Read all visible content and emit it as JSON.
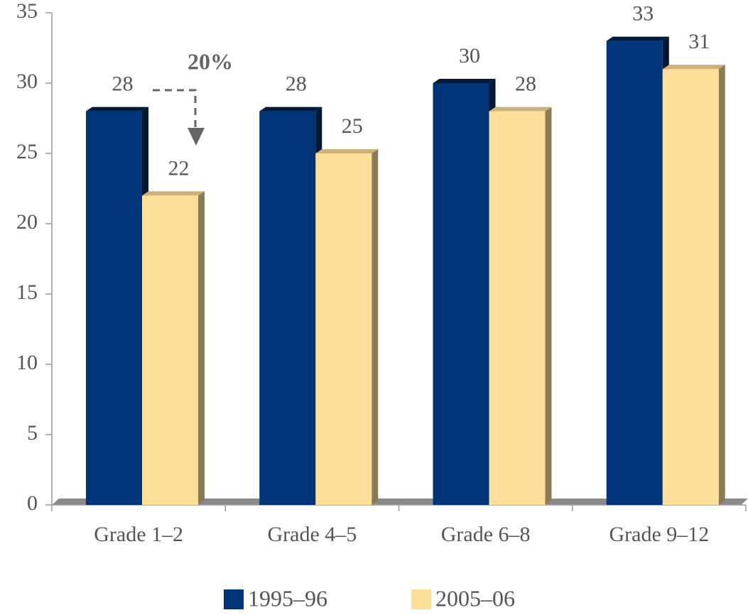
{
  "chart_data": {
    "type": "bar",
    "categories": [
      "Grade 1–2",
      "Grade 4–5",
      "Grade 6–8",
      "Grade 9–12"
    ],
    "series": [
      {
        "name": "1995–96",
        "color": "#003478",
        "values": [
          28,
          28,
          30,
          33
        ]
      },
      {
        "name": "2005–06",
        "color": "#fddf99",
        "values": [
          22,
          25,
          28,
          31
        ]
      }
    ],
    "ylim": [
      0,
      35
    ],
    "yticks": [
      0,
      5,
      10,
      15,
      20,
      25,
      30,
      35
    ],
    "annotation": "20%",
    "legend": "bottom"
  }
}
